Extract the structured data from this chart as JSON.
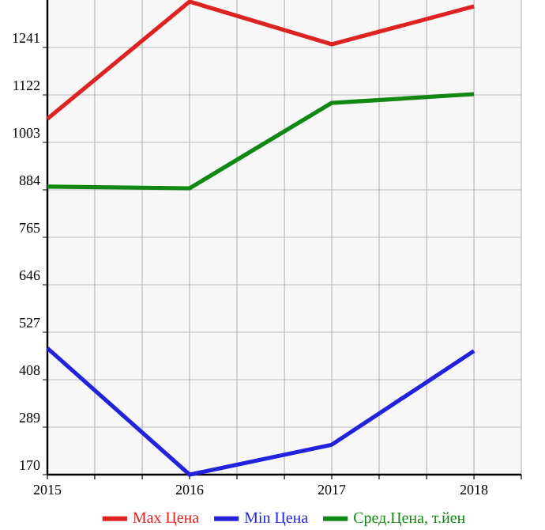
{
  "chart_data": {
    "type": "line",
    "x": [
      2015,
      2016,
      2017,
      2018
    ],
    "series": [
      {
        "name": "Max Цена",
        "color": "#dd2222",
        "values": [
          1062,
          1356,
          1249,
          1344
        ]
      },
      {
        "name": "Min Цена",
        "color": "#2222dd",
        "values": [
          487,
          170,
          245,
          480
        ]
      },
      {
        "name": "Сред.Цена, т.йен",
        "color": "#118811",
        "values": [
          892,
          888,
          1102,
          1124
        ]
      }
    ],
    "xlim": [
      2015,
      2018.333
    ],
    "xticks": [
      2015,
      {
        "value": 2015.333,
        "label": null
      },
      {
        "value": 2015.667,
        "label": null
      },
      2016,
      {
        "value": 2016.333,
        "label": null
      },
      {
        "value": 2016.667,
        "label": null
      },
      2017,
      {
        "value": 2017.333,
        "label": null
      },
      {
        "value": 2017.667,
        "label": null
      },
      2018,
      {
        "value": 2018.333,
        "label": null
      }
    ],
    "ylim": [
      170,
      1360
    ],
    "yticks": [
      170,
      289,
      408,
      527,
      646,
      765,
      884,
      1003,
      1122,
      1241
    ],
    "grid": true,
    "legend": "bottom",
    "marker": "none",
    "line_style": "solid"
  }
}
